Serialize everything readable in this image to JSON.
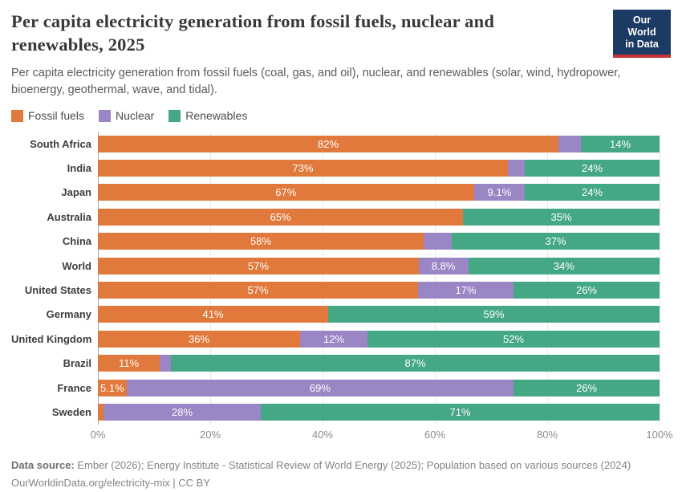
{
  "header": {
    "title": "Per capita electricity generation from fossil fuels, nuclear and renewables, 2025",
    "subtitle": "Per capita electricity generation from fossil fuels (coal, gas, and oil), nuclear, and renewables (solar, wind, hydropower, bioenergy, geothermal, wave, and tidal).",
    "logo": {
      "line1": "Our World",
      "line2": "in Data",
      "bg_color": "#1b3a64",
      "accent_color": "#c73335"
    }
  },
  "legend": [
    {
      "label": "Fossil fuels",
      "color": "#e0793b",
      "slug": "fossil-fuels"
    },
    {
      "label": "Nuclear",
      "color": "#9a85c5",
      "slug": "nuclear"
    },
    {
      "label": "Renewables",
      "color": "#45a884",
      "slug": "renewables"
    }
  ],
  "chart_data": {
    "type": "bar",
    "orientation": "horizontal",
    "stacked": true,
    "unit": "%",
    "xlim": [
      0,
      100
    ],
    "x_ticks": [
      "0%",
      "20%",
      "40%",
      "60%",
      "80%",
      "100%"
    ],
    "x_tick_values": [
      0,
      20,
      40,
      60,
      80,
      100
    ],
    "grid": true,
    "series": [
      {
        "name": "Fossil fuels",
        "color": "#e0793b",
        "slug": "fossil-fuels"
      },
      {
        "name": "Nuclear",
        "color": "#9a85c5",
        "slug": "nuclear"
      },
      {
        "name": "Renewables",
        "color": "#45a884",
        "slug": "renewables"
      }
    ],
    "categories": [
      "South Africa",
      "India",
      "Japan",
      "Australia",
      "China",
      "World",
      "United States",
      "Germany",
      "United Kingdom",
      "Brazil",
      "France",
      "Sweden"
    ],
    "rows": [
      {
        "category": "South Africa",
        "values": [
          82,
          4,
          14
        ],
        "labels": [
          "82%",
          "",
          "14%"
        ]
      },
      {
        "category": "India",
        "values": [
          73,
          3,
          24
        ],
        "labels": [
          "73%",
          "",
          "24%"
        ]
      },
      {
        "category": "Japan",
        "values": [
          67,
          9.1,
          24
        ],
        "labels": [
          "67%",
          "9.1%",
          "24%"
        ]
      },
      {
        "category": "Australia",
        "values": [
          65,
          0,
          35
        ],
        "labels": [
          "65%",
          "",
          "35%"
        ]
      },
      {
        "category": "China",
        "values": [
          58,
          5,
          37
        ],
        "labels": [
          "58%",
          "",
          "37%"
        ]
      },
      {
        "category": "World",
        "values": [
          57,
          8.8,
          34
        ],
        "labels": [
          "57%",
          "8.8%",
          "34%"
        ]
      },
      {
        "category": "United States",
        "values": [
          57,
          17,
          26
        ],
        "labels": [
          "57%",
          "17%",
          "26%"
        ]
      },
      {
        "category": "Germany",
        "values": [
          41,
          0,
          59
        ],
        "labels": [
          "41%",
          "",
          "59%"
        ]
      },
      {
        "category": "United Kingdom",
        "values": [
          36,
          12,
          52
        ],
        "labels": [
          "36%",
          "12%",
          "52%"
        ]
      },
      {
        "category": "Brazil",
        "values": [
          11,
          2,
          87
        ],
        "labels": [
          "11%",
          "",
          "87%"
        ]
      },
      {
        "category": "France",
        "values": [
          5.1,
          69,
          26
        ],
        "labels": [
          "5.1%",
          "69%",
          "26%"
        ]
      },
      {
        "category": "Sweden",
        "values": [
          1,
          28,
          71
        ],
        "labels": [
          "",
          "28%",
          "71%"
        ]
      }
    ]
  },
  "footer": {
    "sources_label": "Data source:",
    "sources_text": " Ember (2026); Energy Institute - Statistical Review of World Energy (2025); Population based on various sources (2024)",
    "note": "OurWorldinData.org/electricity-mix | CC BY"
  }
}
